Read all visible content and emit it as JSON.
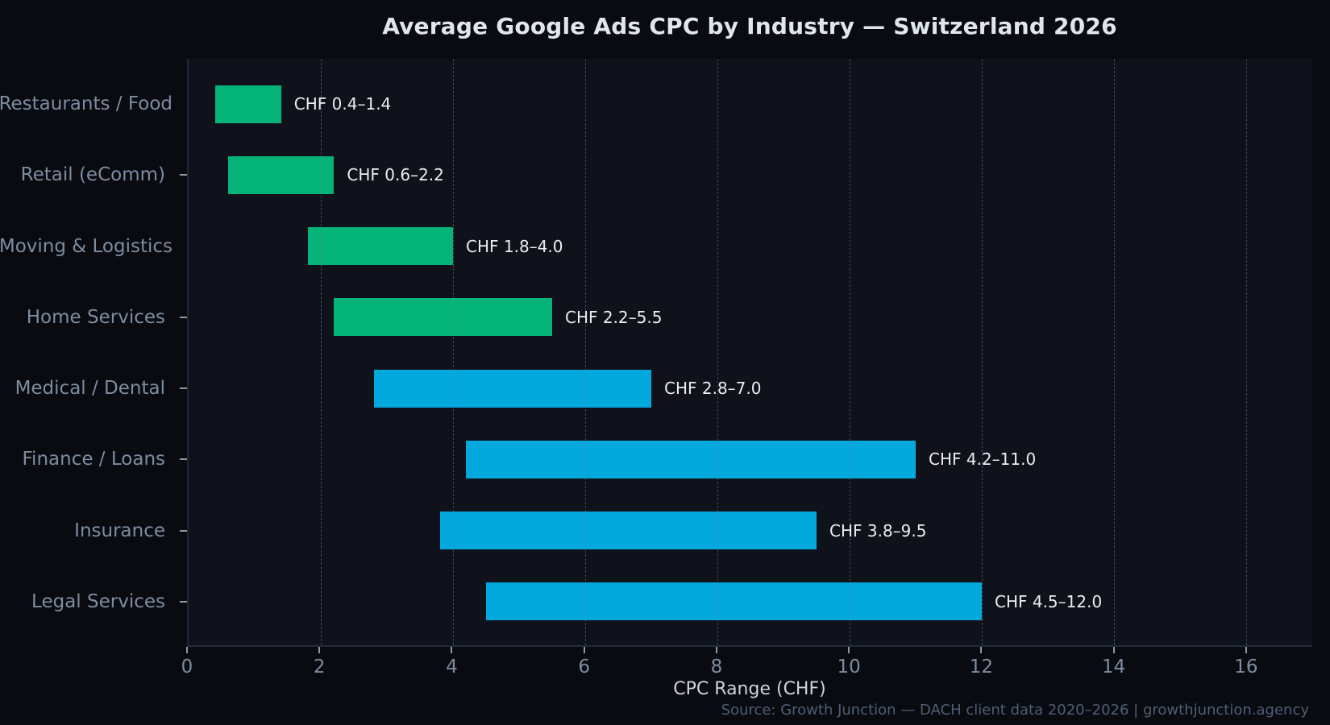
{
  "chart_data": {
    "type": "bar",
    "subtype": "horizontal-range-bars",
    "title": "Average Google Ads CPC by Industry — Switzerland 2026",
    "xlabel": "CPC Range (CHF)",
    "source": "Source: Growth Junction — DACH client data 2020–2026 | growthjunction.agency",
    "xlim": [
      0,
      17
    ],
    "xticks": [
      0,
      2,
      4,
      6,
      8,
      10,
      12,
      14,
      16
    ],
    "grid": "vertical dashed lines at x ticks, drawn over bars",
    "legend": "none",
    "categories": [
      "Restaurants / Food",
      "Retail (eComm)",
      "Moving & Logistics",
      "Home Services",
      "Medical / Dental",
      "Finance / Loans",
      "Insurance",
      "Legal Services"
    ],
    "series": [
      {
        "category": "Restaurants / Food",
        "min": 0.4,
        "max": 1.4,
        "value_label": "CHF 0.4–1.4",
        "color_key": "green"
      },
      {
        "category": "Retail (eComm)",
        "min": 0.6,
        "max": 2.2,
        "value_label": "CHF 0.6–2.2",
        "color_key": "green"
      },
      {
        "category": "Moving & Logistics",
        "min": 1.8,
        "max": 4.0,
        "value_label": "CHF 1.8–4.0",
        "color_key": "green"
      },
      {
        "category": "Home Services",
        "min": 2.2,
        "max": 5.5,
        "value_label": "CHF 2.2–5.5",
        "color_key": "green"
      },
      {
        "category": "Medical / Dental",
        "min": 2.8,
        "max": 7.0,
        "value_label": "CHF 2.8–7.0",
        "color_key": "blue"
      },
      {
        "category": "Finance / Loans",
        "min": 4.2,
        "max": 11.0,
        "value_label": "CHF 4.2–11.0",
        "color_key": "blue"
      },
      {
        "category": "Insurance",
        "min": 3.8,
        "max": 9.5,
        "value_label": "CHF 3.8–9.5",
        "color_key": "blue"
      },
      {
        "category": "Legal Services",
        "min": 4.5,
        "max": 12.0,
        "value_label": "CHF 4.5–12.0",
        "color_key": "blue"
      }
    ],
    "colors": {
      "green": "#04b377",
      "blue": "#03a8dd",
      "figure_bg": "#090b10",
      "plot_bg": "#0f121b",
      "title_text": "#e0e6ed",
      "category_text": "#7e8ca1",
      "tick_text": "#7e8ca1",
      "bar_label_text": "#e9eef4",
      "xlabel_text": "#ccd4de",
      "source_text": "#4f5e75"
    }
  }
}
